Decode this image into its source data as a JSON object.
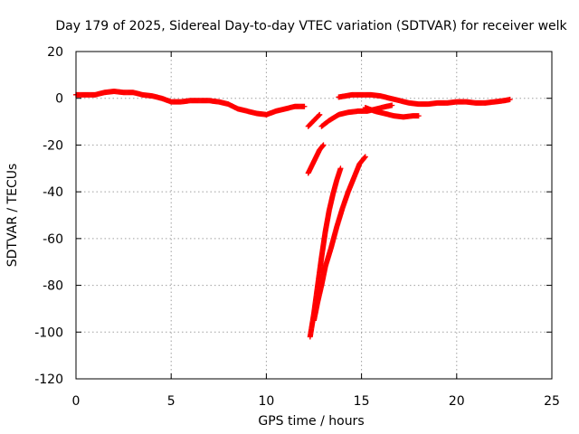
{
  "chart_data": {
    "type": "scatter",
    "title": "Day 179 of 2025, Sidereal Day-to-day VTEC variation (SDTVAR) for receiver welk",
    "xlabel": "GPS time / hours",
    "ylabel": "SDTVAR / TECUs",
    "xlim": [
      0,
      25
    ],
    "ylim": [
      -120,
      20
    ],
    "xticks": [
      0,
      5,
      10,
      15,
      20,
      25
    ],
    "yticks": [
      20,
      0,
      -20,
      -40,
      -60,
      -80,
      -100,
      -120
    ],
    "grid": true,
    "marker": "plus",
    "color": "#ff0000",
    "series": [
      {
        "name": "track-main-early",
        "points": [
          [
            0,
            1.5
          ],
          [
            0.5,
            1.5
          ],
          [
            1,
            1.5
          ],
          [
            1.5,
            2.5
          ],
          [
            2,
            3
          ],
          [
            2.5,
            2.5
          ],
          [
            3,
            2.5
          ],
          [
            3.5,
            1.5
          ],
          [
            4,
            1
          ],
          [
            4.5,
            0
          ],
          [
            5,
            -1.5
          ],
          [
            5.5,
            -1.5
          ],
          [
            6,
            -1
          ],
          [
            6.5,
            -1
          ],
          [
            7,
            -1
          ],
          [
            7.5,
            -1.5
          ],
          [
            8,
            -2.5
          ],
          [
            8.5,
            -4.5
          ],
          [
            9,
            -5.5
          ],
          [
            9.5,
            -6.5
          ],
          [
            10,
            -7
          ],
          [
            10.5,
            -5.5
          ],
          [
            11,
            -4.5
          ],
          [
            11.5,
            -3.5
          ],
          [
            12,
            -3.5
          ]
        ]
      },
      {
        "name": "track-main-late",
        "points": [
          [
            13.8,
            0.5
          ],
          [
            14.5,
            1.5
          ],
          [
            15,
            1.5
          ],
          [
            15.5,
            1.5
          ],
          [
            16,
            1
          ],
          [
            16.5,
            0
          ],
          [
            17,
            -1
          ],
          [
            17.5,
            -2
          ],
          [
            18,
            -2.5
          ],
          [
            18.5,
            -2.5
          ],
          [
            19,
            -2
          ],
          [
            19.5,
            -2
          ],
          [
            20,
            -1.5
          ],
          [
            20.5,
            -1.5
          ],
          [
            21,
            -2
          ],
          [
            21.5,
            -2
          ],
          [
            22,
            -1.5
          ],
          [
            22.5,
            -1
          ],
          [
            22.8,
            -0.5
          ]
        ]
      },
      {
        "name": "track-b",
        "points": [
          [
            12.2,
            -12
          ],
          [
            12.5,
            -9.5
          ],
          [
            12.8,
            -7
          ]
        ]
      },
      {
        "name": "track-c",
        "points": [
          [
            12.9,
            -12
          ],
          [
            13.3,
            -9.5
          ],
          [
            13.8,
            -7
          ],
          [
            14.3,
            -6
          ],
          [
            14.8,
            -5.5
          ],
          [
            15.3,
            -5.5
          ],
          [
            15.8,
            -4.5
          ],
          [
            16.3,
            -3.5
          ],
          [
            16.6,
            -3
          ]
        ]
      },
      {
        "name": "track-d",
        "points": [
          [
            15.2,
            -4
          ],
          [
            15.7,
            -5.5
          ],
          [
            16.2,
            -6.5
          ],
          [
            16.7,
            -7.5
          ],
          [
            17.2,
            -8
          ],
          [
            17.7,
            -7.5
          ],
          [
            18,
            -7.5
          ]
        ]
      },
      {
        "name": "track-e",
        "points": [
          [
            12.2,
            -32
          ],
          [
            12.5,
            -27
          ],
          [
            12.8,
            -22
          ],
          [
            13,
            -20
          ]
        ]
      },
      {
        "name": "track-f",
        "points": [
          [
            12.3,
            -102
          ],
          [
            12.5,
            -92
          ],
          [
            12.7,
            -80
          ],
          [
            12.9,
            -68
          ],
          [
            13.1,
            -57
          ],
          [
            13.3,
            -48
          ],
          [
            13.5,
            -41
          ],
          [
            13.7,
            -35
          ],
          [
            13.9,
            -30
          ]
        ]
      },
      {
        "name": "track-g",
        "points": [
          [
            12.5,
            -95
          ],
          [
            12.7,
            -87
          ],
          [
            12.9,
            -80
          ],
          [
            13.1,
            -72
          ],
          [
            13.4,
            -64
          ],
          [
            13.7,
            -55
          ],
          [
            14,
            -47
          ],
          [
            14.3,
            -40
          ],
          [
            14.6,
            -34
          ],
          [
            14.9,
            -28
          ],
          [
            15.2,
            -25
          ]
        ]
      }
    ]
  }
}
